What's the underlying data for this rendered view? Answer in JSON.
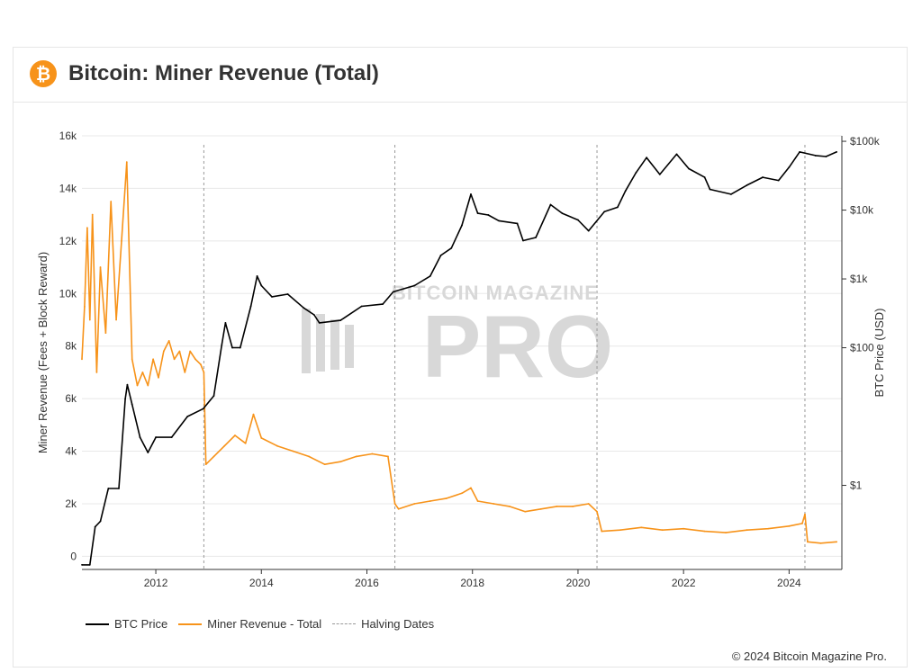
{
  "header": {
    "logo_glyph": "₿",
    "logo_icon": "bitcoin-logo-icon",
    "title": "Bitcoin: Miner Revenue (Total)"
  },
  "watermark": {
    "line1": "BITCOIN MAGAZINE",
    "line2": "PRO"
  },
  "copyright": "© 2024 Bitcoin Magazine Pro.",
  "colors": {
    "price": "#000000",
    "revenue": "#f7931a",
    "halving": "#999999",
    "grid": "#e8e8e8"
  },
  "chart_data": {
    "type": "line",
    "title": "Bitcoin: Miner Revenue (Total)",
    "xlabel": "",
    "ylabel_left": "Miner Revenue (Fees + Block Reward)",
    "ylabel_right": "BTC Price (USD)",
    "x_range": [
      2010.6,
      2025.0
    ],
    "x_ticks": [
      2012,
      2014,
      2016,
      2018,
      2020,
      2022,
      2024
    ],
    "y_left_range": [
      -500,
      16000
    ],
    "y_left_ticks": [
      {
        "value": 0,
        "label": "0"
      },
      {
        "value": 2000,
        "label": "2k"
      },
      {
        "value": 4000,
        "label": "4k"
      },
      {
        "value": 6000,
        "label": "6k"
      },
      {
        "value": 8000,
        "label": "8k"
      },
      {
        "value": 10000,
        "label": "10k"
      },
      {
        "value": 12000,
        "label": "12k"
      },
      {
        "value": 14000,
        "label": "14k"
      },
      {
        "value": 16000,
        "label": "16k"
      }
    ],
    "y_right_scale": "log",
    "y_right_range": [
      0.06,
      120000
    ],
    "y_right_ticks": [
      {
        "value": 1,
        "label": "$1"
      },
      {
        "value": 100,
        "label": "$100"
      },
      {
        "value": 1000,
        "label": "$1k"
      },
      {
        "value": 10000,
        "label": "$10k"
      },
      {
        "value": 100000,
        "label": "$100k"
      }
    ],
    "grid": true,
    "legend_position": "bottom-left",
    "halving_dates": [
      2012.91,
      2016.53,
      2020.36,
      2024.3
    ],
    "series": [
      {
        "name": "BTC Price",
        "axis": "right",
        "x": [
          2010.6,
          2010.75,
          2010.85,
          2010.95,
          2011.1,
          2011.3,
          2011.42,
          2011.46,
          2011.55,
          2011.7,
          2011.85,
          2012.0,
          2012.3,
          2012.6,
          2012.9,
          2013.1,
          2013.25,
          2013.32,
          2013.45,
          2013.6,
          2013.8,
          2013.92,
          2014.0,
          2014.2,
          2014.5,
          2014.8,
          2015.0,
          2015.1,
          2015.5,
          2015.9,
          2016.3,
          2016.5,
          2016.9,
          2017.2,
          2017.4,
          2017.6,
          2017.8,
          2017.97,
          2018.1,
          2018.3,
          2018.5,
          2018.85,
          2018.96,
          2019.2,
          2019.48,
          2019.7,
          2020.0,
          2020.2,
          2020.5,
          2020.75,
          2020.9,
          2021.1,
          2021.3,
          2021.55,
          2021.87,
          2022.1,
          2022.4,
          2022.5,
          2022.9,
          2023.2,
          2023.5,
          2023.8,
          2024.0,
          2024.2,
          2024.5,
          2024.7,
          2024.9
        ],
        "y": [
          0.07,
          0.07,
          0.25,
          0.3,
          0.9,
          0.9,
          18,
          29,
          15,
          5,
          3,
          5,
          5,
          10,
          13,
          20,
          110,
          230,
          100,
          100,
          400,
          1100,
          800,
          550,
          600,
          380,
          300,
          230,
          250,
          400,
          430,
          650,
          800,
          1100,
          2200,
          2800,
          6000,
          17000,
          9000,
          8500,
          7000,
          6400,
          3600,
          4000,
          12000,
          9000,
          7200,
          5000,
          9500,
          11000,
          19000,
          35000,
          58000,
          33000,
          65000,
          40000,
          30000,
          20000,
          17000,
          23000,
          30000,
          27000,
          42000,
          70000,
          62000,
          60000,
          70000
        ]
      },
      {
        "name": "Miner Revenue - Total",
        "axis": "left",
        "x": [
          2010.6,
          2010.65,
          2010.7,
          2010.75,
          2010.8,
          2010.88,
          2010.95,
          2011.05,
          2011.15,
          2011.25,
          2011.35,
          2011.45,
          2011.55,
          2011.65,
          2011.75,
          2011.85,
          2011.95,
          2012.05,
          2012.15,
          2012.25,
          2012.35,
          2012.45,
          2012.55,
          2012.65,
          2012.75,
          2012.85,
          2012.91,
          2012.95,
          2013.1,
          2013.3,
          2013.5,
          2013.7,
          2013.85,
          2014.0,
          2014.3,
          2014.6,
          2014.9,
          2015.2,
          2015.5,
          2015.8,
          2016.1,
          2016.4,
          2016.53,
          2016.6,
          2016.9,
          2017.2,
          2017.5,
          2017.8,
          2017.97,
          2018.1,
          2018.4,
          2018.7,
          2019.0,
          2019.3,
          2019.6,
          2019.9,
          2020.2,
          2020.36,
          2020.45,
          2020.8,
          2021.2,
          2021.6,
          2022.0,
          2022.4,
          2022.8,
          2023.2,
          2023.6,
          2024.0,
          2024.25,
          2024.3,
          2024.35,
          2024.6,
          2024.9
        ],
        "y": [
          7500,
          9500,
          12500,
          9000,
          13000,
          7000,
          11000,
          8500,
          13500,
          9000,
          12000,
          15000,
          7500,
          6500,
          7000,
          6500,
          7500,
          6800,
          7800,
          8200,
          7500,
          7800,
          7000,
          7800,
          7500,
          7300,
          7000,
          3500,
          3800,
          4200,
          4600,
          4300,
          5400,
          4500,
          4200,
          4000,
          3800,
          3500,
          3600,
          3800,
          3900,
          3800,
          2000,
          1800,
          2000,
          2100,
          2200,
          2400,
          2600,
          2100,
          2000,
          1900,
          1700,
          1800,
          1900,
          1900,
          2000,
          1700,
          950,
          1000,
          1100,
          1000,
          1050,
          950,
          900,
          1000,
          1050,
          1150,
          1250,
          1600,
          550,
          500,
          550
        ]
      },
      {
        "name": "Halving Dates",
        "style": "dashed"
      }
    ]
  }
}
